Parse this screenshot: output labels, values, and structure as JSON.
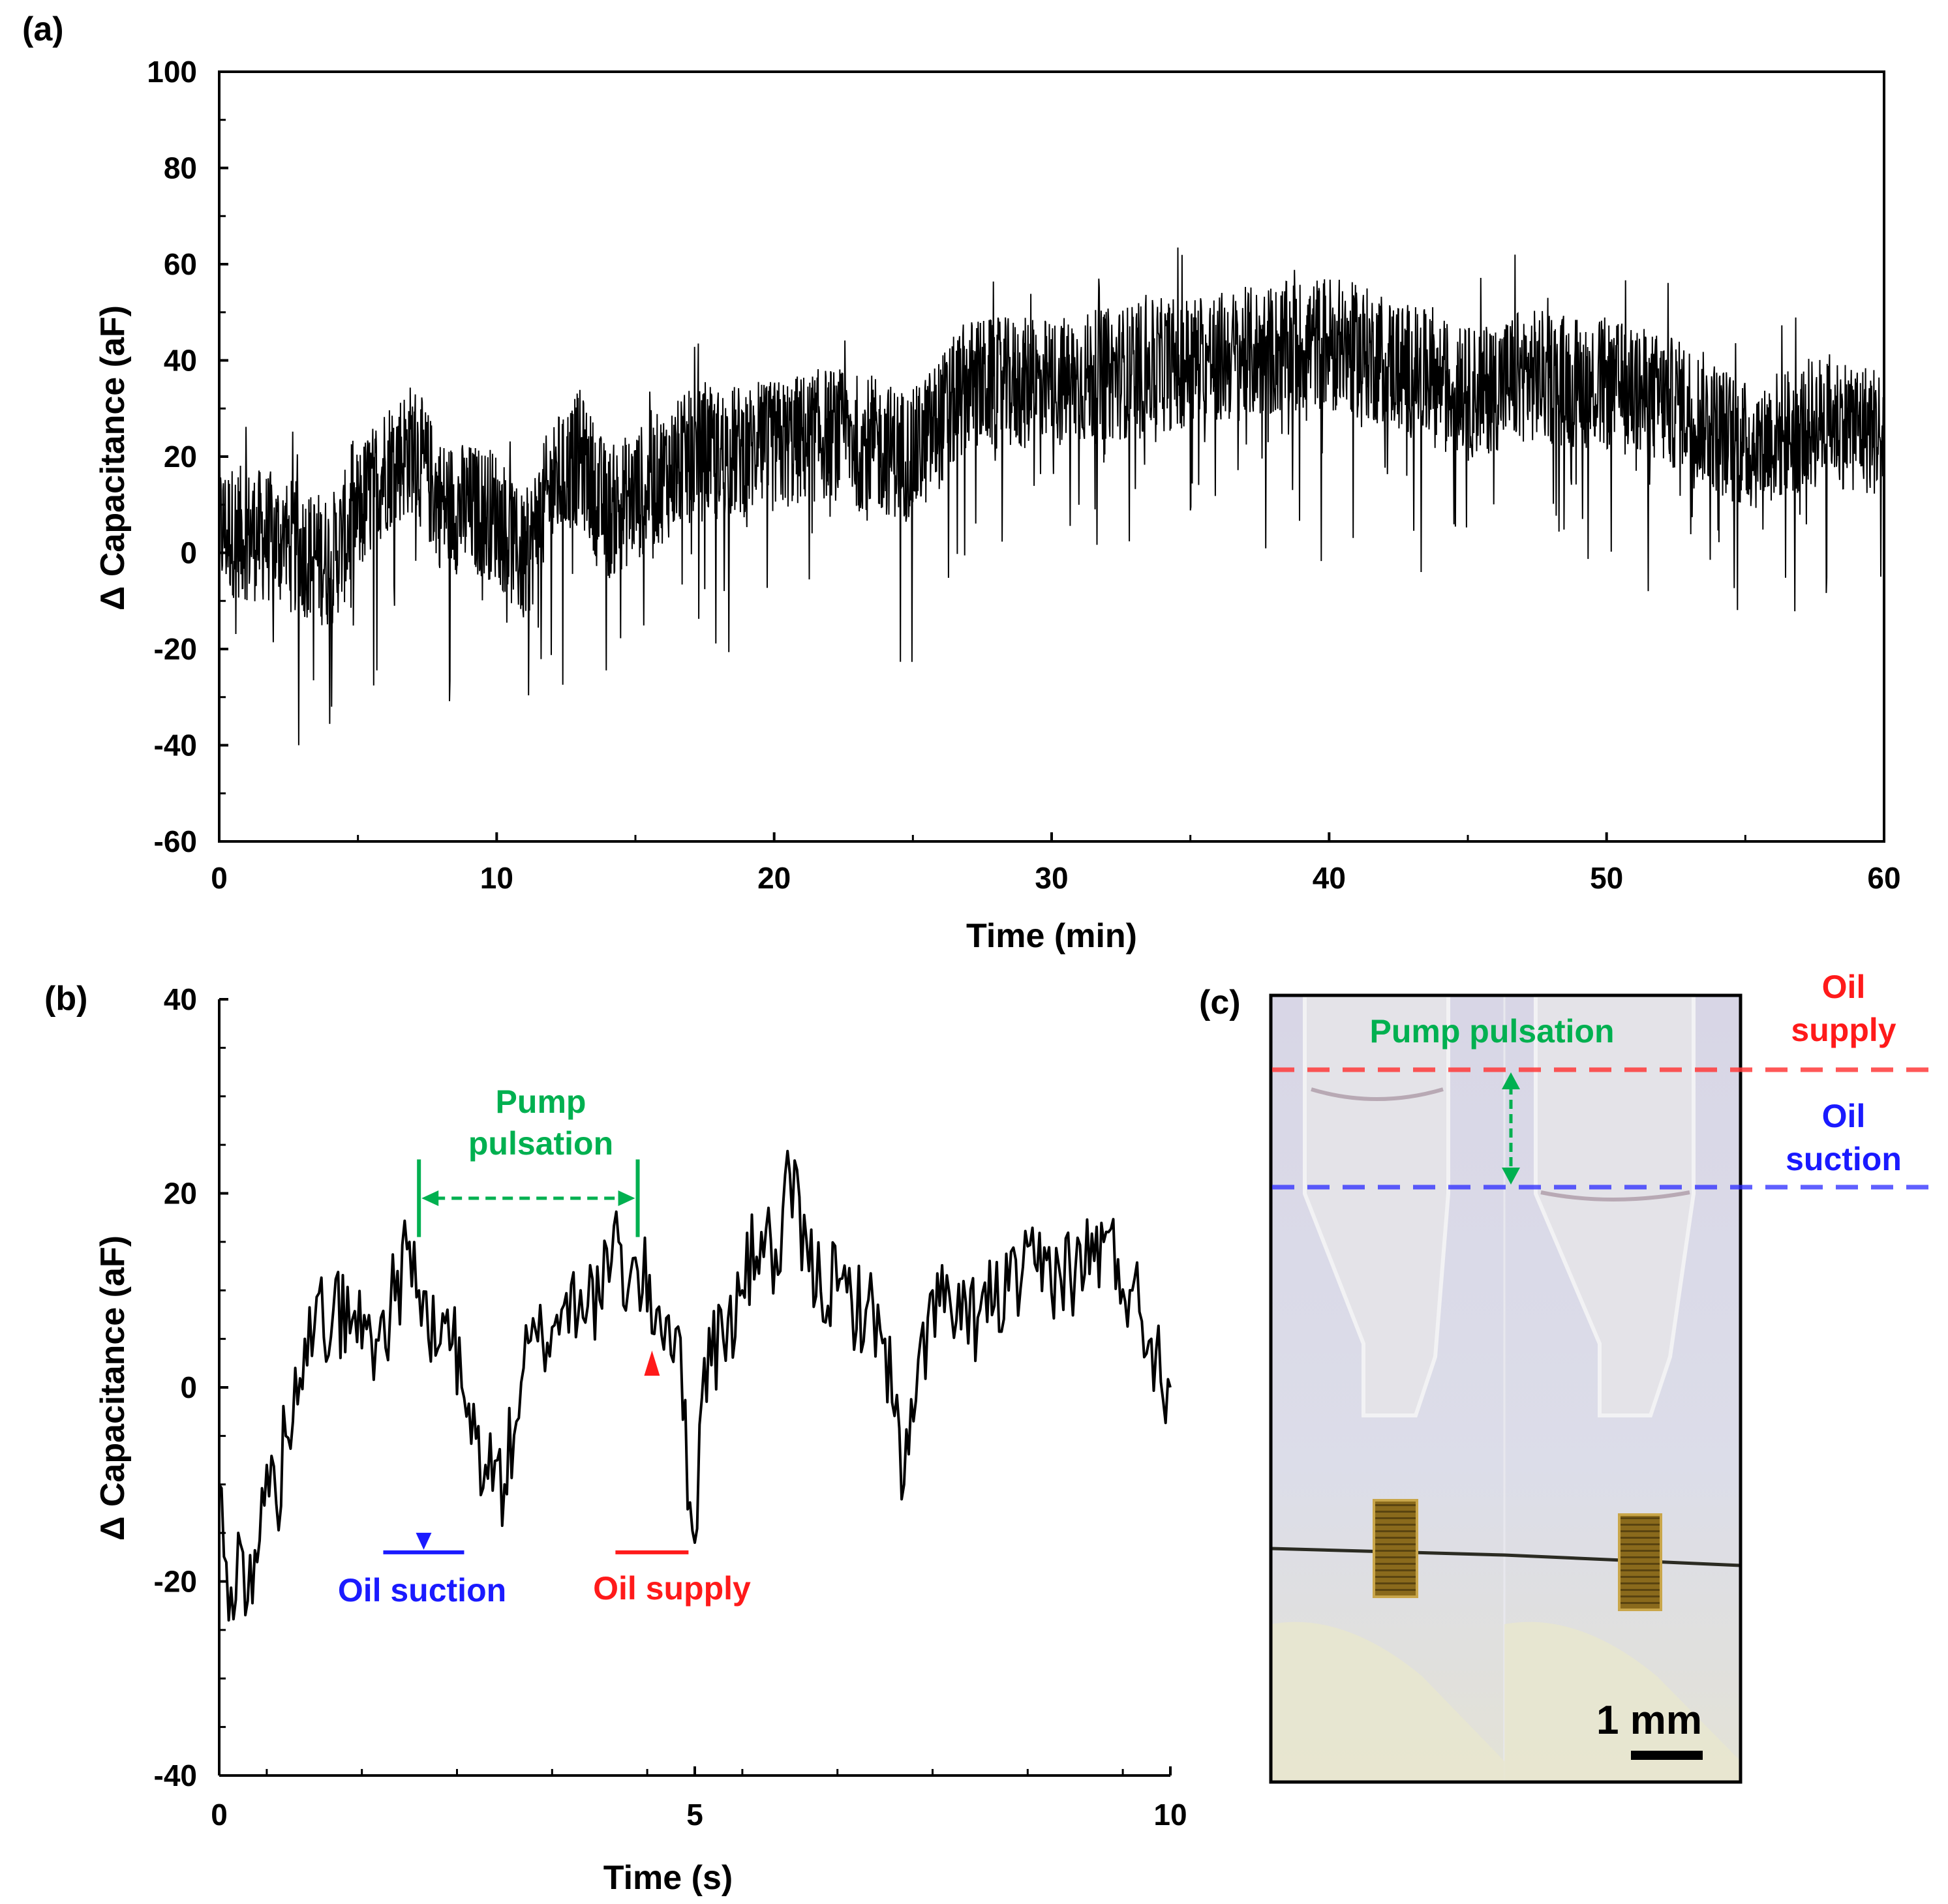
{
  "chart_data": [
    {
      "panel": "(a)",
      "type": "line",
      "title": "",
      "xlabel": "Time (min)",
      "ylabel": "Δ Capacitance (aF)",
      "xlim": [
        0,
        60
      ],
      "ylim": [
        -60,
        100
      ],
      "xticks": [
        0,
        10,
        20,
        30,
        40,
        50,
        60
      ],
      "yticks": [
        -60,
        -40,
        -20,
        0,
        20,
        40,
        60,
        80,
        100
      ],
      "series": [
        {
          "name": "Δ Capacitance",
          "color": "#000000",
          "baseline_x": [
            0,
            2,
            4,
            6,
            7,
            8,
            10,
            11,
            12,
            13,
            14,
            15,
            17,
            20,
            22,
            25,
            27,
            30,
            33,
            35,
            38,
            40,
            42,
            45,
            47,
            50,
            53,
            55,
            58,
            60
          ],
          "baseline_y": [
            5,
            3,
            -2,
            18,
            22,
            10,
            8,
            -2,
            14,
            20,
            8,
            12,
            20,
            22,
            25,
            20,
            35,
            35,
            38,
            40,
            42,
            44,
            40,
            33,
            37,
            35,
            30,
            22,
            28,
            25
          ],
          "noise_band_half_width": 14,
          "spike_min_reported": -40,
          "spike_max_reported": 66
        }
      ]
    },
    {
      "panel": "(b)",
      "type": "line",
      "title": "",
      "xlabel": "Time (s)",
      "ylabel": "Δ Capacitance (aF)",
      "xlim": [
        0,
        10
      ],
      "ylim": [
        -40,
        40
      ],
      "xticks": [
        0,
        5,
        10
      ],
      "yticks": [
        -40,
        -20,
        0,
        20,
        40
      ],
      "series": [
        {
          "name": "Δ Capacitance",
          "color": "#000000",
          "x": [
            0,
            0.1,
            0.2,
            0.3,
            0.4,
            0.5,
            0.6,
            0.7,
            0.8,
            0.9,
            1.0,
            1.2,
            1.4,
            1.6,
            1.8,
            2.0,
            2.1,
            2.2,
            2.3,
            2.4,
            2.6,
            2.8,
            3.0,
            3.2,
            3.4,
            3.6,
            3.8,
            4.0,
            4.2,
            4.3,
            4.4,
            4.6,
            4.8,
            5.0,
            5.1,
            5.3,
            5.5,
            5.7,
            5.9,
            6.0,
            6.2,
            6.5,
            6.8,
            7.0,
            7.2,
            7.5,
            7.8,
            8.0,
            8.3,
            8.6,
            9.0,
            9.3,
            9.6,
            9.8,
            10.0
          ],
          "y": [
            -10,
            -24,
            -15,
            -22,
            -18,
            -8,
            -12,
            -5,
            2,
            5,
            6,
            8,
            7,
            5,
            8,
            15,
            10,
            5,
            4,
            8,
            -3,
            -8,
            -10,
            2,
            5,
            8,
            10,
            9,
            15,
            10,
            12,
            8,
            6,
            -16,
            3,
            5,
            10,
            16,
            12,
            22,
            12,
            10,
            8,
            5,
            -10,
            10,
            6,
            8,
            10,
            12,
            12,
            15,
            10,
            5,
            0
          ]
        }
      ],
      "annotations": {
        "pump_pulsation": "Pump\npulsation",
        "oil_suction": "Oil suction",
        "oil_supply": "Oil supply",
        "pump_range_x": [
          2.1,
          4.4
        ],
        "suction_arrow_x": 2.15,
        "supply_arrow_x": 4.55,
        "suction_level_y": -17,
        "supply_level_y": -17
      }
    }
  ],
  "panel_c": {
    "label": "(c)",
    "pump_pulsation": "Pump pulsation",
    "oil_supply": "Oil\nsupply",
    "oil_suction": "Oil\nsuction",
    "scale_bar": "1 mm"
  },
  "panel_labels": {
    "a": "(a)",
    "b": "(b)"
  },
  "colors": {
    "green": "#00b050",
    "blue": "#1a1aff",
    "red": "#ff1a1a",
    "photo_bg": "#d9dcea",
    "gold": "#8a6a1c"
  }
}
